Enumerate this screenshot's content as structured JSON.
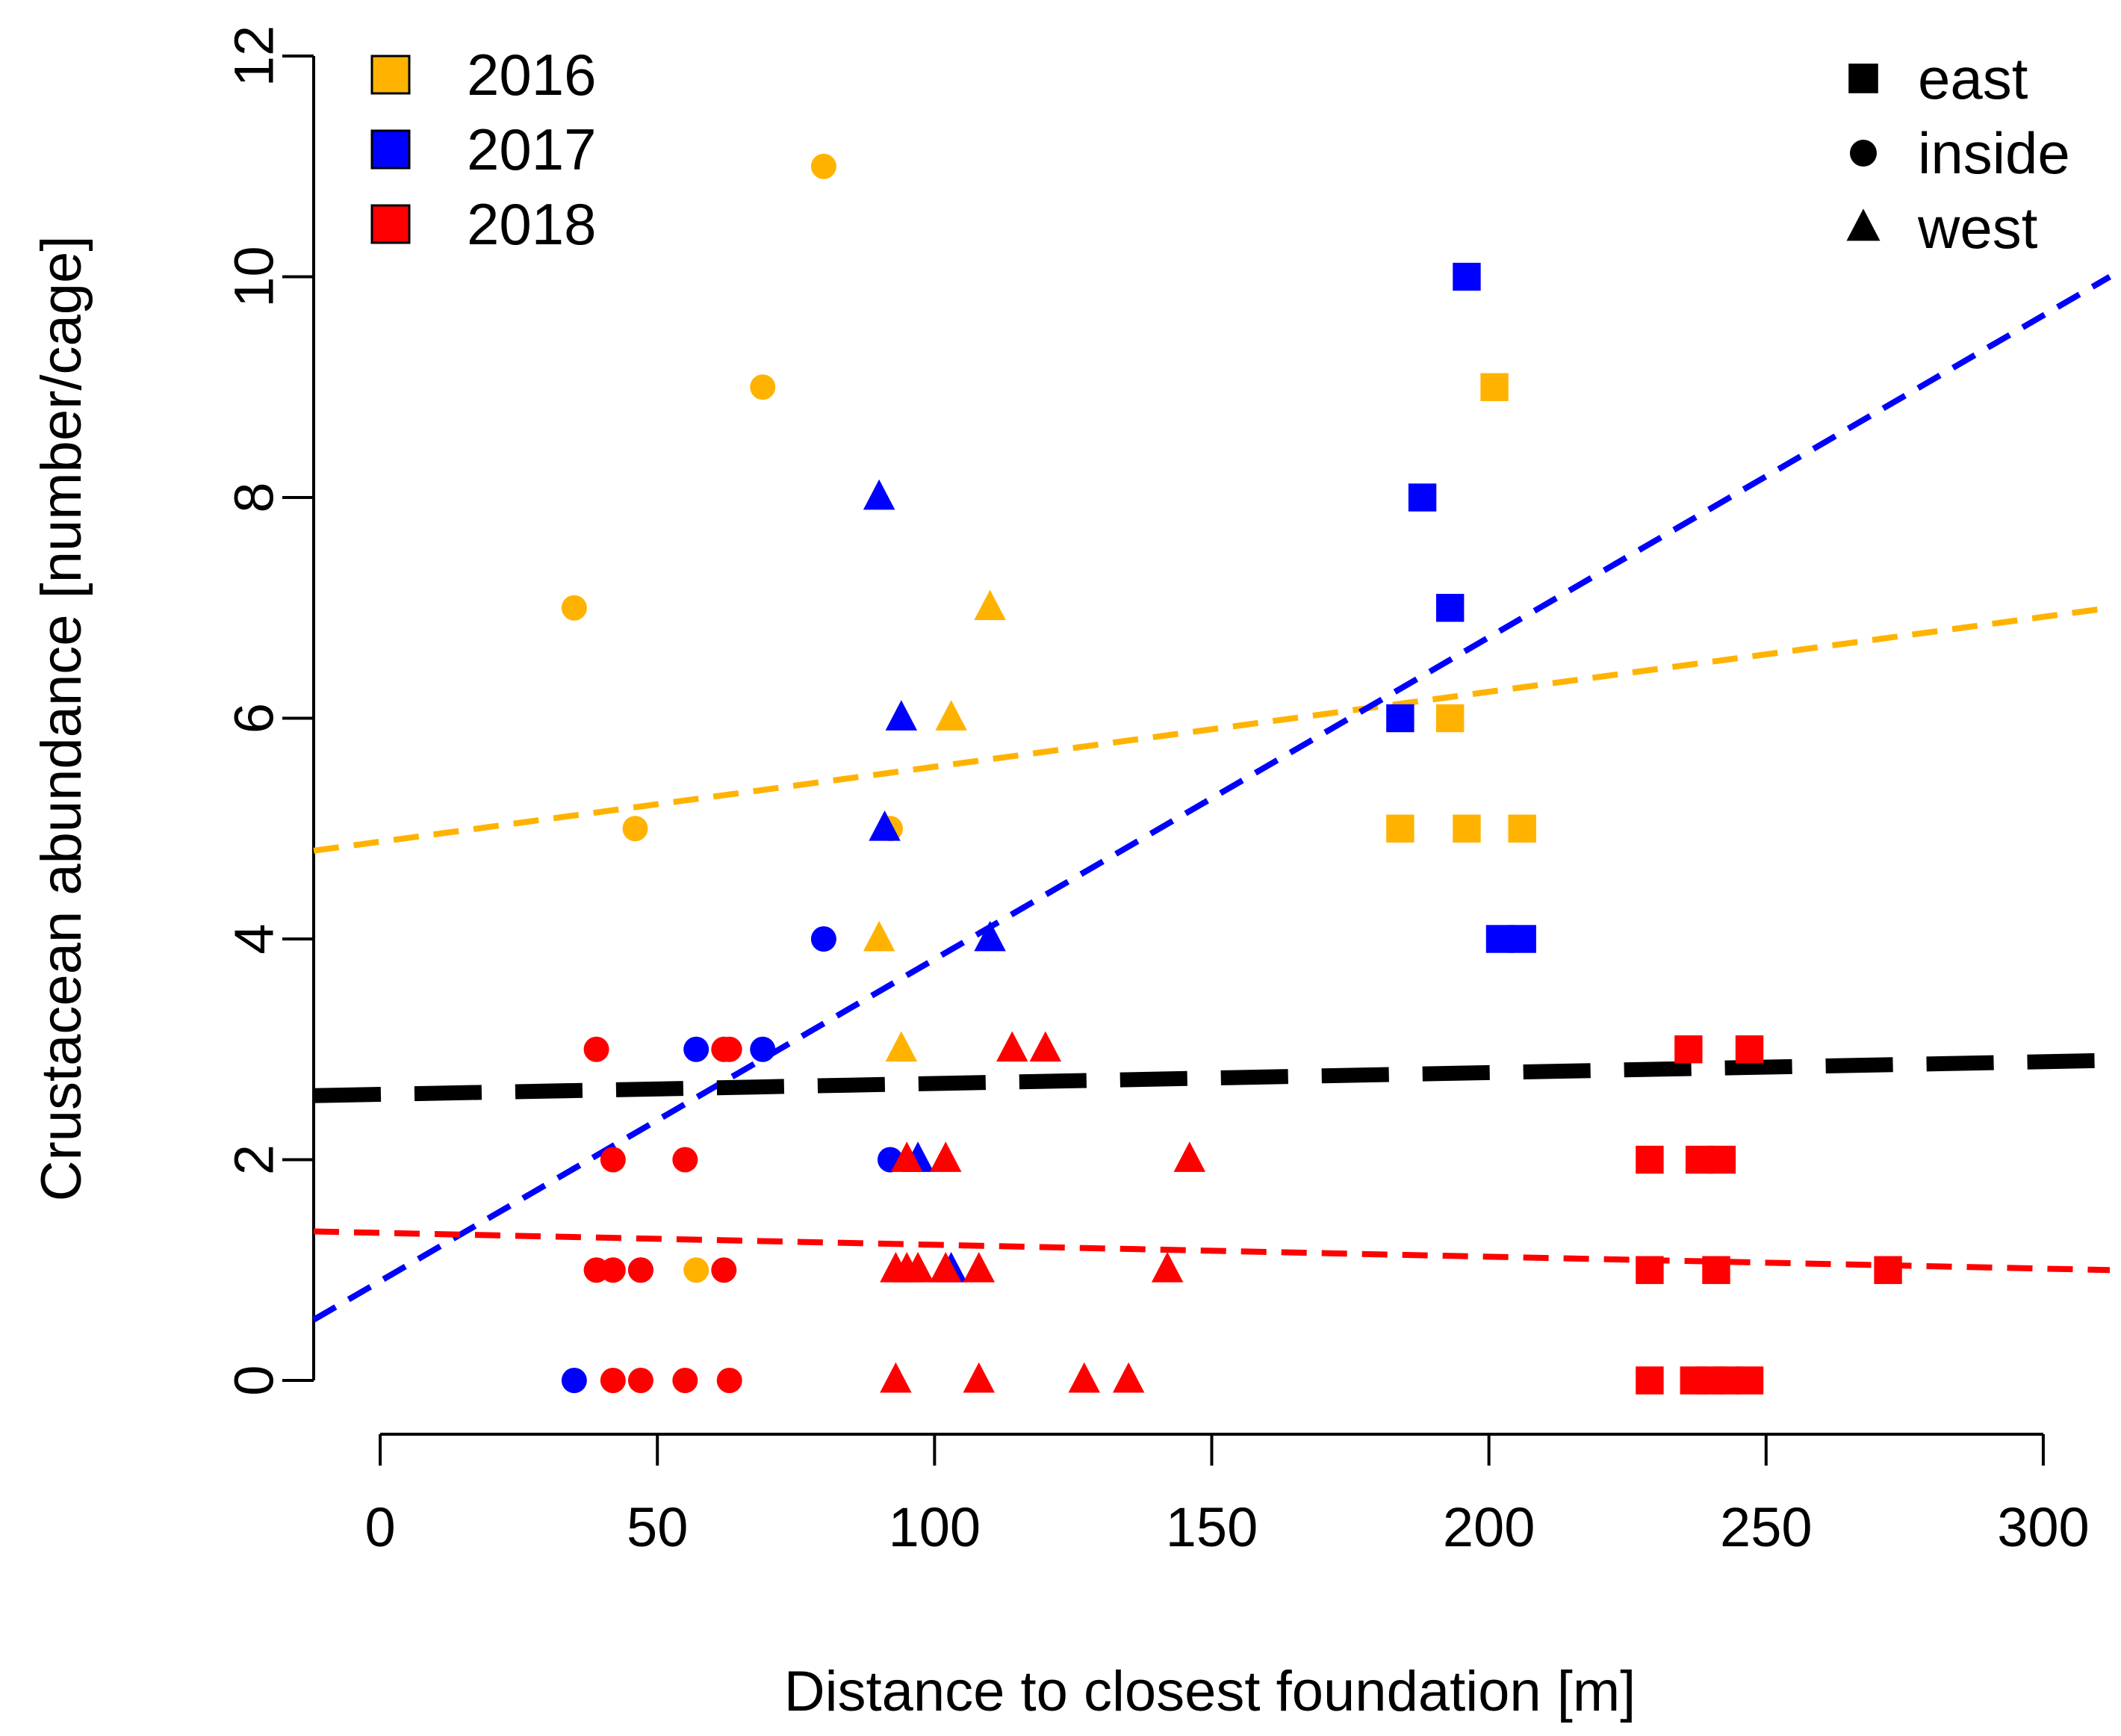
{
  "chart_data": {
    "type": "scatter",
    "title": "",
    "xlabel": "Distance to closest foundation [m]",
    "ylabel": "Crustacean abundance [number/cage]",
    "xlim": [
      -12,
      312
    ],
    "ylim": [
      0,
      12
    ],
    "xticks": [
      "0",
      "50",
      "100",
      "150",
      "200",
      "250",
      "300"
    ],
    "yticks": [
      "0",
      "2",
      "4",
      "6",
      "8",
      "10",
      "12"
    ],
    "grid": false,
    "colors": {
      "2016": "#FFB300",
      "2017": "#0000FF",
      "2018": "#FF0000",
      "overall": "#000000"
    },
    "legend_year": {
      "placement": "top-left",
      "entries": [
        {
          "label": "2016",
          "color": "#FFB300"
        },
        {
          "label": "2017",
          "color": "#0000FF"
        },
        {
          "label": "2018",
          "color": "#FF0000"
        }
      ]
    },
    "legend_location": {
      "placement": "top-right",
      "entries": [
        {
          "label": "east",
          "shape": "square"
        },
        {
          "label": "inside",
          "shape": "circle"
        },
        {
          "label": "west",
          "shape": "triangle"
        }
      ]
    },
    "series": [
      {
        "name": "2016",
        "color": "#FFB300",
        "points": [
          {
            "x": 35,
            "y": 7,
            "shape": "circle"
          },
          {
            "x": 46,
            "y": 5,
            "shape": "circle"
          },
          {
            "x": 57,
            "y": 1,
            "shape": "circle"
          },
          {
            "x": 69,
            "y": 9,
            "shape": "circle"
          },
          {
            "x": 80,
            "y": 11,
            "shape": "circle"
          },
          {
            "x": 92,
            "y": 5,
            "shape": "circle"
          },
          {
            "x": 90,
            "y": 4,
            "shape": "triangle"
          },
          {
            "x": 94,
            "y": 3,
            "shape": "triangle"
          },
          {
            "x": 103,
            "y": 6,
            "shape": "triangle"
          },
          {
            "x": 110,
            "y": 7,
            "shape": "triangle"
          },
          {
            "x": 184,
            "y": 5,
            "shape": "square"
          },
          {
            "x": 193,
            "y": 6,
            "shape": "square"
          },
          {
            "x": 196,
            "y": 5,
            "shape": "square"
          },
          {
            "x": 201,
            "y": 9,
            "shape": "square"
          },
          {
            "x": 206,
            "y": 5,
            "shape": "square"
          }
        ]
      },
      {
        "name": "2017",
        "color": "#0000FF",
        "points": [
          {
            "x": 35,
            "y": 0,
            "shape": "circle"
          },
          {
            "x": 47,
            "y": 1,
            "shape": "circle"
          },
          {
            "x": 57,
            "y": 3,
            "shape": "circle"
          },
          {
            "x": 69,
            "y": 3,
            "shape": "circle"
          },
          {
            "x": 80,
            "y": 4,
            "shape": "circle"
          },
          {
            "x": 92,
            "y": 2,
            "shape": "circle"
          },
          {
            "x": 90,
            "y": 8,
            "shape": "triangle"
          },
          {
            "x": 91,
            "y": 5,
            "shape": "triangle"
          },
          {
            "x": 94,
            "y": 6,
            "shape": "triangle"
          },
          {
            "x": 97,
            "y": 2,
            "shape": "triangle"
          },
          {
            "x": 103,
            "y": 1,
            "shape": "triangle"
          },
          {
            "x": 110,
            "y": 4,
            "shape": "triangle"
          },
          {
            "x": 184,
            "y": 6,
            "shape": "square"
          },
          {
            "x": 188,
            "y": 8,
            "shape": "square"
          },
          {
            "x": 193,
            "y": 7,
            "shape": "square"
          },
          {
            "x": 196,
            "y": 10,
            "shape": "square"
          },
          {
            "x": 202,
            "y": 4,
            "shape": "square"
          },
          {
            "x": 206,
            "y": 4,
            "shape": "square"
          }
        ]
      },
      {
        "name": "2018",
        "color": "#FF0000",
        "points": [
          {
            "x": 39,
            "y": 3,
            "shape": "circle"
          },
          {
            "x": 39,
            "y": 1,
            "shape": "circle"
          },
          {
            "x": 42,
            "y": 1,
            "shape": "circle"
          },
          {
            "x": 42,
            "y": 2,
            "shape": "circle"
          },
          {
            "x": 42,
            "y": 0,
            "shape": "circle"
          },
          {
            "x": 47,
            "y": 1,
            "shape": "circle"
          },
          {
            "x": 47,
            "y": 0,
            "shape": "circle"
          },
          {
            "x": 55,
            "y": 2,
            "shape": "circle"
          },
          {
            "x": 55,
            "y": 0,
            "shape": "circle"
          },
          {
            "x": 62,
            "y": 3,
            "shape": "circle"
          },
          {
            "x": 63,
            "y": 3,
            "shape": "circle"
          },
          {
            "x": 62,
            "y": 1,
            "shape": "circle"
          },
          {
            "x": 63,
            "y": 0,
            "shape": "circle"
          },
          {
            "x": 93,
            "y": 1,
            "shape": "triangle"
          },
          {
            "x": 93,
            "y": 0,
            "shape": "triangle"
          },
          {
            "x": 95,
            "y": 2,
            "shape": "triangle"
          },
          {
            "x": 95,
            "y": 1,
            "shape": "triangle"
          },
          {
            "x": 97,
            "y": 1,
            "shape": "triangle"
          },
          {
            "x": 102,
            "y": 2,
            "shape": "triangle"
          },
          {
            "x": 102,
            "y": 1,
            "shape": "triangle"
          },
          {
            "x": 108,
            "y": 1,
            "shape": "triangle"
          },
          {
            "x": 108,
            "y": 0,
            "shape": "triangle"
          },
          {
            "x": 114,
            "y": 3,
            "shape": "triangle"
          },
          {
            "x": 120,
            "y": 3,
            "shape": "triangle"
          },
          {
            "x": 127,
            "y": 0,
            "shape": "triangle"
          },
          {
            "x": 135,
            "y": 0,
            "shape": "triangle"
          },
          {
            "x": 142,
            "y": 1,
            "shape": "triangle"
          },
          {
            "x": 146,
            "y": 2,
            "shape": "triangle"
          },
          {
            "x": 229,
            "y": 2,
            "shape": "square"
          },
          {
            "x": 229,
            "y": 1,
            "shape": "square"
          },
          {
            "x": 229,
            "y": 0,
            "shape": "square"
          },
          {
            "x": 236,
            "y": 3,
            "shape": "square"
          },
          {
            "x": 237,
            "y": 0,
            "shape": "square"
          },
          {
            "x": 238,
            "y": 2,
            "shape": "square"
          },
          {
            "x": 240,
            "y": 0,
            "shape": "square"
          },
          {
            "x": 241,
            "y": 1,
            "shape": "square"
          },
          {
            "x": 242,
            "y": 2,
            "shape": "square"
          },
          {
            "x": 243,
            "y": 0,
            "shape": "square"
          },
          {
            "x": 247,
            "y": 3,
            "shape": "square"
          },
          {
            "x": 247,
            "y": 0,
            "shape": "square"
          },
          {
            "x": 272,
            "y": 1,
            "shape": "square"
          }
        ]
      }
    ],
    "trend_lines": [
      {
        "name": "2016",
        "color": "#FFB300",
        "y_at_xmin": 4.8,
        "y_at_xmax": 7.0,
        "style": "dashed"
      },
      {
        "name": "2017",
        "color": "#0000FF",
        "y_at_xmin": 0.55,
        "y_at_xmax": 10.0,
        "style": "dashed"
      },
      {
        "name": "2018",
        "color": "#FF0000",
        "y_at_xmin": 1.35,
        "y_at_xmax": 1.0,
        "style": "dashed"
      },
      {
        "name": "overall",
        "color": "#000000",
        "y_at_xmin": 2.58,
        "y_at_xmax": 2.9,
        "style": "long-dashed"
      }
    ]
  }
}
